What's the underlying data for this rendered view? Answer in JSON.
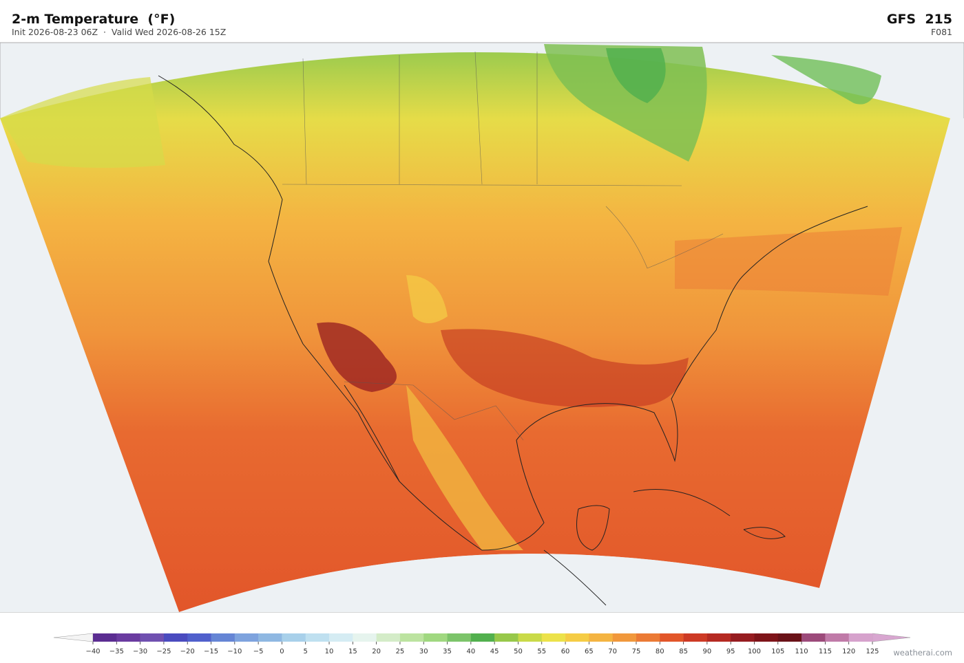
{
  "header": {
    "title": "2-m Temperature  (°F)",
    "subtitle": "Init 2026-08-23 06Z  ·  Valid Wed 2026-08-26 15Z",
    "model": "GFS  215",
    "forecast_hour": "F081"
  },
  "colorbar": {
    "ticks": [
      {
        "value": -40,
        "label": "−40"
      },
      {
        "value": -35,
        "label": "−35"
      },
      {
        "value": -30,
        "label": "−30"
      },
      {
        "value": -25,
        "label": "−25"
      },
      {
        "value": -20,
        "label": "−20"
      },
      {
        "value": -15,
        "label": "−15"
      },
      {
        "value": -10,
        "label": "−10"
      },
      {
        "value": -5,
        "label": "−5"
      },
      0,
      5,
      10,
      15,
      20,
      25,
      30,
      35,
      40,
      45,
      50,
      55,
      60,
      65,
      70,
      75,
      80,
      85,
      90,
      95,
      100,
      105,
      110,
      115,
      120,
      125
    ],
    "colors": [
      "#5b2d91",
      "#6a3ba0",
      "#7050b0",
      "#4a4bbf",
      "#5060cc",
      "#6585d5",
      "#7ea3de",
      "#8fb8e2",
      "#a8d0ea",
      "#bfe0f0",
      "#d5ecf3",
      "#e6f4ee",
      "#d4ecc8",
      "#bce3a0",
      "#a0d880",
      "#7cc46a",
      "#52b04e",
      "#97c84a",
      "#c9da48",
      "#ece24a",
      "#f5cc45",
      "#f4b442",
      "#f1983c",
      "#eb7a35",
      "#e2562a",
      "#cd3a25",
      "#b52a22",
      "#961c20",
      "#7e1419",
      "#6a1218",
      "#9c4a7a",
      "#c07aa8",
      "#d6a2cc"
    ],
    "under_color": "#f4f4f4",
    "over_color": "#d8a6d0"
  },
  "credit": "weatherai.com"
}
